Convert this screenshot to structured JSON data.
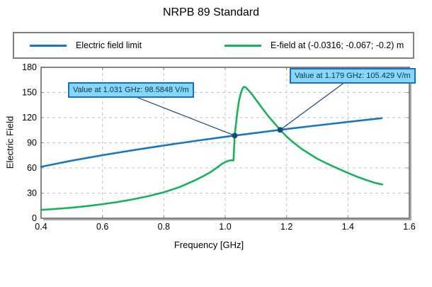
{
  "colors": {
    "accent_blue": "#1778c2",
    "accent_green": "#17b35a",
    "marker_navy": "#17497c",
    "tooltip_fill": "#86d7f8",
    "tooltip_border": "#1a70c0",
    "tooltip_text": "#0d3050",
    "grid": "#c6c6c6",
    "tick": "#8a8a8a",
    "plot_border": "#666666",
    "plot_shadow": "#aaaaaa",
    "legend_border": "#808080"
  },
  "chart_data": {
    "type": "line",
    "title": "NRPB 89 Standard",
    "xlabel": "Frequency [GHz]",
    "ylabel": "Electric Field",
    "xlim": [
      0.4,
      1.6
    ],
    "ylim": [
      0,
      180
    ],
    "x_ticks": [
      "0.4",
      "0.6",
      "0.8",
      "1.0",
      "1.2",
      "1.4",
      "1.6"
    ],
    "y_ticks": [
      0,
      30,
      60,
      90,
      120,
      150,
      180
    ],
    "grid": true,
    "legend_position": "top",
    "series": [
      {
        "name": "Electric field limit",
        "color": "#1778c2",
        "points": [
          [
            0.4,
            61.4
          ],
          [
            0.5,
            68.7
          ],
          [
            0.6,
            75.2
          ],
          [
            0.7,
            81.2
          ],
          [
            0.8,
            86.8
          ],
          [
            0.9,
            92.1
          ],
          [
            1.0,
            97.1
          ],
          [
            1.031,
            98.6
          ],
          [
            1.1,
            101.8
          ],
          [
            1.179,
            105.4
          ],
          [
            1.2,
            106.4
          ],
          [
            1.3,
            110.7
          ],
          [
            1.4,
            114.9
          ],
          [
            1.51,
            119.3
          ]
        ]
      },
      {
        "name": "E-field at (-0.0316; -0.067; -0.2) m",
        "color": "#17b35a",
        "points": [
          [
            0.4,
            10
          ],
          [
            0.45,
            11.2
          ],
          [
            0.5,
            12.6
          ],
          [
            0.55,
            14.5
          ],
          [
            0.6,
            16.8
          ],
          [
            0.65,
            19.4
          ],
          [
            0.7,
            22.6
          ],
          [
            0.75,
            26.4
          ],
          [
            0.8,
            31
          ],
          [
            0.85,
            37
          ],
          [
            0.9,
            45
          ],
          [
            0.93,
            50.5
          ],
          [
            0.95,
            54.5
          ],
          [
            0.97,
            59.5
          ],
          [
            0.99,
            65
          ],
          [
            1.0,
            67
          ],
          [
            1.01,
            68.4
          ],
          [
            1.02,
            69.2
          ],
          [
            1.027,
            68.9
          ],
          [
            1.031,
            98.6
          ],
          [
            1.035,
            112
          ],
          [
            1.04,
            128
          ],
          [
            1.045,
            140
          ],
          [
            1.05,
            148
          ],
          [
            1.055,
            153.5
          ],
          [
            1.06,
            156.5
          ],
          [
            1.065,
            156.5
          ],
          [
            1.07,
            155
          ],
          [
            1.08,
            151
          ],
          [
            1.09,
            146.5
          ],
          [
            1.1,
            141.5
          ],
          [
            1.12,
            131.5
          ],
          [
            1.14,
            122
          ],
          [
            1.16,
            113.5
          ],
          [
            1.179,
            105.4
          ],
          [
            1.2,
            97.5
          ],
          [
            1.22,
            91
          ],
          [
            1.25,
            82.5
          ],
          [
            1.28,
            75.5
          ],
          [
            1.3,
            71
          ],
          [
            1.33,
            65.5
          ],
          [
            1.36,
            60.5
          ],
          [
            1.4,
            54
          ],
          [
            1.43,
            49.5
          ],
          [
            1.46,
            45.5
          ],
          [
            1.49,
            42
          ],
          [
            1.512,
            40.3
          ]
        ]
      }
    ],
    "annotations": [
      {
        "label": "Value at 1.031 GHz: 98.5848 V/m",
        "x": 1.031,
        "y": 98.5848
      },
      {
        "label": "Value at 1.179 GHz: 105.429 V/m",
        "x": 1.179,
        "y": 105.429
      }
    ]
  }
}
